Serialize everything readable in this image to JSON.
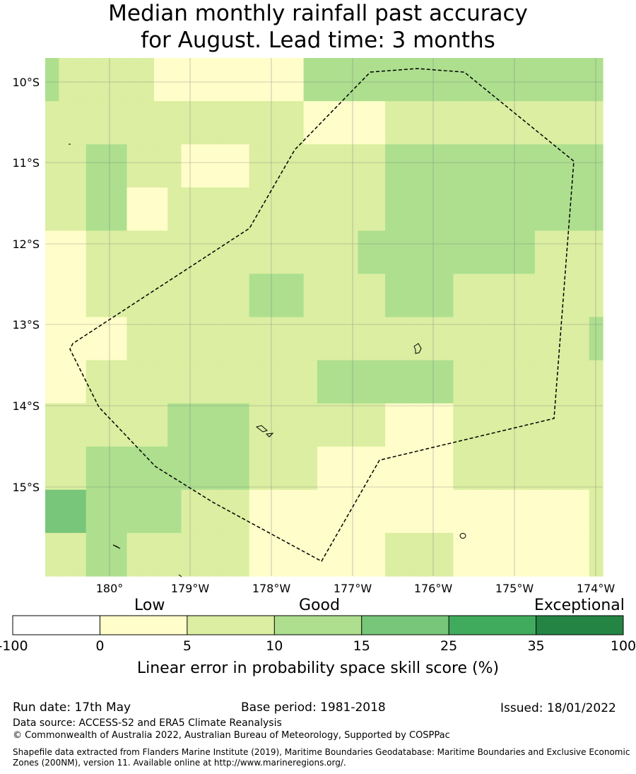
{
  "title_line1": "Median monthly rainfall past accuracy",
  "title_line2": "for August. Lead time: 3 months",
  "map": {
    "lon_range": [
      179.2,
      186.0
    ],
    "lat_range": [
      -16.1,
      -9.7
    ],
    "y_ticks": [
      "10°S",
      "11°S",
      "12°S",
      "13°S",
      "14°S",
      "15°S"
    ],
    "x_ticks": [
      "180°",
      "179°W",
      "178°W",
      "177°W",
      "176°W",
      "175°W",
      "174°W"
    ],
    "grid": "on",
    "boundary": "dashed EEZ outline",
    "colors": [
      "#fffdc9",
      "#dbeea1",
      "#addf8e",
      "#78c679",
      "#41ab5d",
      "#238443"
    ],
    "skill_classes_rows_north_to_south": [
      [
        3,
        2,
        2,
        2,
        2,
        2,
        2,
        2,
        1,
        1,
        1,
        1,
        1,
        1,
        1,
        1,
        1,
        1,
        1,
        3,
        3,
        3,
        3,
        3,
        3,
        3,
        3,
        3,
        3,
        3,
        3,
        3,
        3,
        3,
        3,
        3,
        3,
        3,
        3,
        3,
        3
      ],
      [
        2,
        2,
        2,
        2,
        2,
        2,
        2,
        2,
        2,
        2,
        2,
        2,
        2,
        2,
        2,
        2,
        2,
        2,
        2,
        1,
        1,
        1,
        1,
        1,
        1,
        2,
        2,
        2,
        2,
        2,
        2,
        2,
        2,
        2,
        2,
        2,
        2,
        2,
        2,
        2,
        2
      ],
      [
        2,
        2,
        2,
        3,
        3,
        3,
        2,
        2,
        2,
        2,
        1,
        1,
        1,
        1,
        1,
        2,
        2,
        2,
        2,
        2,
        2,
        2,
        2,
        2,
        2,
        3,
        3,
        3,
        3,
        3,
        3,
        3,
        3,
        3,
        3,
        3,
        3,
        3,
        3,
        3,
        3
      ],
      [
        2,
        2,
        2,
        3,
        3,
        3,
        1,
        1,
        1,
        2,
        2,
        2,
        2,
        2,
        2,
        2,
        2,
        2,
        2,
        2,
        2,
        2,
        2,
        2,
        2,
        3,
        3,
        3,
        3,
        3,
        3,
        3,
        3,
        3,
        3,
        3,
        3,
        3,
        3,
        3,
        3
      ],
      [
        1,
        1,
        1,
        2,
        2,
        2,
        2,
        2,
        2,
        2,
        2,
        2,
        2,
        2,
        2,
        2,
        2,
        2,
        2,
        2,
        2,
        2,
        2,
        3,
        3,
        3,
        3,
        3,
        3,
        3,
        3,
        3,
        3,
        3,
        3,
        3,
        2,
        2,
        2,
        2,
        2
      ],
      [
        1,
        1,
        1,
        2,
        2,
        2,
        2,
        2,
        2,
        2,
        2,
        2,
        2,
        2,
        2,
        3,
        3,
        3,
        3,
        2,
        2,
        2,
        2,
        2,
        2,
        3,
        3,
        3,
        3,
        3,
        2,
        2,
        2,
        2,
        2,
        2,
        2,
        2,
        2,
        2,
        2
      ],
      [
        1,
        1,
        1,
        1,
        1,
        1,
        2,
        2,
        2,
        2,
        2,
        2,
        2,
        2,
        2,
        2,
        2,
        2,
        2,
        2,
        2,
        2,
        2,
        2,
        2,
        2,
        2,
        2,
        2,
        2,
        2,
        2,
        2,
        2,
        2,
        2,
        2,
        2,
        2,
        2,
        3
      ],
      [
        1,
        1,
        1,
        2,
        2,
        2,
        2,
        2,
        2,
        2,
        2,
        2,
        2,
        2,
        2,
        2,
        2,
        2,
        2,
        2,
        3,
        3,
        3,
        3,
        3,
        3,
        3,
        3,
        3,
        3,
        2,
        2,
        2,
        2,
        2,
        2,
        2,
        2,
        2,
        2,
        2
      ],
      [
        2,
        2,
        2,
        2,
        2,
        2,
        2,
        2,
        2,
        3,
        3,
        3,
        3,
        3,
        3,
        2,
        2,
        2,
        2,
        2,
        2,
        2,
        2,
        2,
        2,
        1,
        1,
        1,
        1,
        1,
        2,
        2,
        2,
        2,
        2,
        2,
        2,
        2,
        2,
        2,
        2
      ],
      [
        2,
        2,
        2,
        3,
        3,
        3,
        3,
        3,
        3,
        3,
        3,
        3,
        3,
        3,
        3,
        2,
        2,
        2,
        2,
        2,
        1,
        1,
        1,
        1,
        1,
        1,
        1,
        1,
        1,
        1,
        2,
        2,
        2,
        2,
        2,
        2,
        2,
        2,
        2,
        2,
        2
      ],
      [
        4,
        4,
        4,
        3,
        3,
        3,
        3,
        3,
        3,
        3,
        2,
        2,
        2,
        2,
        2,
        1,
        1,
        1,
        1,
        1,
        1,
        1,
        1,
        1,
        1,
        1,
        1,
        1,
        1,
        1,
        1,
        1,
        1,
        1,
        1,
        1,
        1,
        1,
        1,
        1,
        2
      ],
      [
        2,
        2,
        2,
        3,
        3,
        3,
        2,
        2,
        2,
        2,
        2,
        2,
        2,
        2,
        2,
        1,
        1,
        1,
        1,
        1,
        1,
        1,
        1,
        1,
        1,
        2,
        2,
        2,
        2,
        2,
        1,
        1,
        1,
        1,
        1,
        1,
        1,
        1,
        1,
        1,
        2
      ]
    ]
  },
  "colorbar": {
    "category_labels": [
      "Low",
      "Good",
      "Exceptional"
    ],
    "tick_labels": [
      "-100",
      "0",
      "5",
      "10",
      "15",
      "25",
      "35",
      "100"
    ],
    "colors": [
      "#ffffff",
      "#fffdc9",
      "#dbeea1",
      "#addf8e",
      "#78c679",
      "#41ab5d",
      "#238443"
    ],
    "axis_title": "Linear error in probability space skill score (%)"
  },
  "footer": {
    "run_date": "Run date: 17th May",
    "base_period": "Base period: 1981-2018",
    "issued": "Issued: 18/01/2022",
    "data_source": "Data source: ACCESS-S2 and ERA5 Climate Reanalysis",
    "copyright": "© Commonwealth of Australia 2022, Australian Bureau of Meteorology, Supported by COSPPac",
    "shapefile": "Shapefile data extracted from Flanders Marine Institute (2019), Maritime Boundaries Geodatabase: Maritime Boundaries and Exclusive Economic Zones (200NM), version 11. Available online at http://www.marineregions.org/."
  }
}
